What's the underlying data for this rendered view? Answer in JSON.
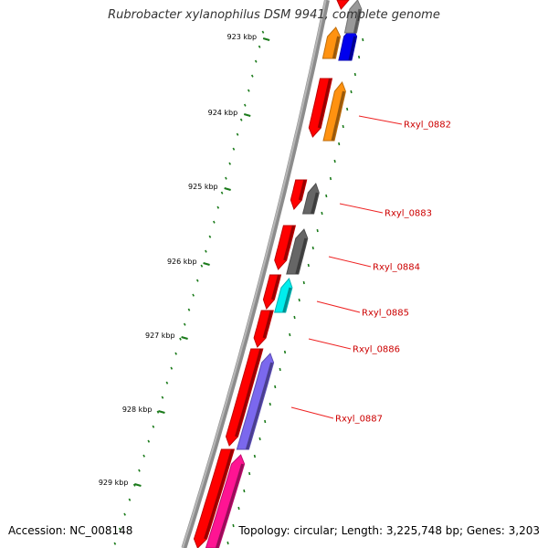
{
  "title": "Rubrobacter xylanophilus DSM 9941, complete genome",
  "footer": {
    "accession": "Accession: NC_008148",
    "summary": "Topology: circular; Length: 3,225,748 bp; Genes: 3,203"
  },
  "colors": {
    "background": "#ffffff",
    "backbone": "#8c8c8c",
    "ticks": "#1a7a1a",
    "gene_label": "#cc0000",
    "label_line": "#ee2222"
  },
  "scale": {
    "unit": "kbp",
    "labels": [
      "923 kbp",
      "924 kbp",
      "925 kbp",
      "926 kbp",
      "927 kbp",
      "928 kbp",
      "929 kbp"
    ]
  },
  "gene_labels": [
    "Rxyl_0882",
    "Rxyl_0883",
    "Rxyl_0884",
    "Rxyl_0885",
    "Rxyl_0886",
    "Rxyl_0887"
  ],
  "genes": [
    {
      "strand": "-",
      "color": "#ff9210"
    },
    {
      "strand": "-",
      "color": "#0000ee"
    },
    {
      "strand": "+",
      "color": "#ff0000"
    },
    {
      "strand": "-",
      "color": "#999999"
    },
    {
      "strand": "+",
      "color": "#ff0000"
    },
    {
      "strand": "-",
      "color": "#ff9210"
    },
    {
      "strand": "+",
      "color": "#ff0000"
    },
    {
      "strand": "-",
      "color": "#666666"
    },
    {
      "strand": "+",
      "color": "#ff0000"
    },
    {
      "strand": "-",
      "color": "#666666"
    },
    {
      "strand": "+",
      "color": "#ff0000"
    },
    {
      "strand": "-",
      "color": "#00eeee"
    },
    {
      "strand": "+",
      "color": "#ff0000"
    },
    {
      "strand": "+",
      "color": "#ff0000"
    },
    {
      "strand": "-",
      "color": "#7b68ee"
    },
    {
      "strand": "+",
      "color": "#ff0000"
    },
    {
      "strand": "-",
      "color": "#ff1493"
    }
  ]
}
